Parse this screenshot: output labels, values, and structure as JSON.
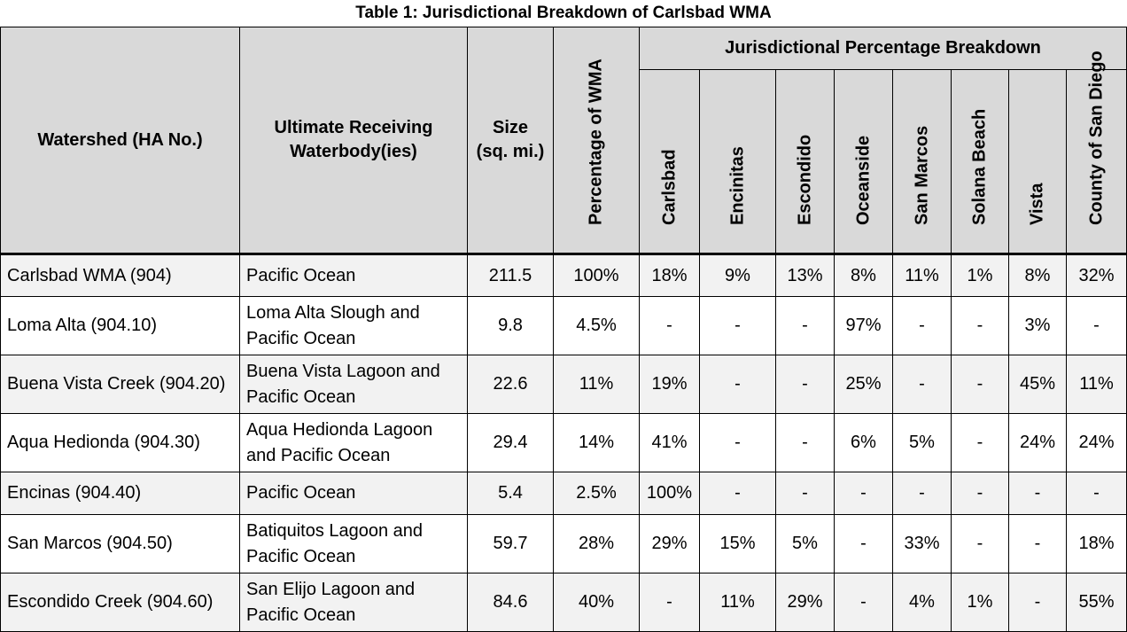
{
  "caption": "Table 1: Jurisdictional Breakdown of Carlsbad WMA",
  "headers": {
    "watershed": "Watershed (HA No.)",
    "receiving_line1": "Ultimate Receiving",
    "receiving_line2": "Waterbody(ies)",
    "size_line1": "Size",
    "size_line2": "(sq. mi.)",
    "percent_wma": "Percentage of WMA",
    "group": "Jurisdictional Percentage Breakdown",
    "jurisdictions": [
      "Carlsbad",
      "Encinitas",
      "Escondido",
      "Oceanside",
      "San Marcos",
      "Solana Beach",
      "Vista",
      "County of San Diego"
    ]
  },
  "rows": [
    {
      "watershed": "Carlsbad WMA (904)",
      "receiving": "Pacific Ocean",
      "size": "211.5",
      "percent": "100%",
      "values": [
        "18%",
        "9%",
        "13%",
        "8%",
        "11%",
        "1%",
        "8%",
        "32%"
      ]
    },
    {
      "watershed": "Loma Alta (904.10)",
      "receiving": "Loma Alta Slough and Pacific Ocean",
      "size": "9.8",
      "percent": "4.5%",
      "values": [
        "-",
        "-",
        "-",
        "97%",
        "-",
        "-",
        "3%",
        "-"
      ]
    },
    {
      "watershed": "Buena Vista Creek (904.20)",
      "receiving": "Buena Vista Lagoon and Pacific Ocean",
      "size": "22.6",
      "percent": "11%",
      "values": [
        "19%",
        "-",
        "-",
        "25%",
        "-",
        "-",
        "45%",
        "11%"
      ]
    },
    {
      "watershed": "Aqua Hedionda (904.30)",
      "receiving": "Aqua Hedionda Lagoon and Pacific Ocean",
      "size": "29.4",
      "percent": "14%",
      "values": [
        "41%",
        "-",
        "-",
        "6%",
        "5%",
        "-",
        "24%",
        "24%"
      ]
    },
    {
      "watershed": "Encinas (904.40)",
      "receiving": "Pacific Ocean",
      "size": "5.4",
      "percent": "2.5%",
      "values": [
        "100%",
        "-",
        "-",
        "-",
        "-",
        "-",
        "-",
        "-"
      ]
    },
    {
      "watershed": "San Marcos (904.50)",
      "receiving": "Batiquitos Lagoon and Pacific Ocean",
      "size": "59.7",
      "percent": "28%",
      "values": [
        "29%",
        "15%",
        "5%",
        "-",
        "33%",
        "-",
        "-",
        "18%"
      ]
    },
    {
      "watershed": "Escondido Creek (904.60)",
      "receiving": "San Elijo Lagoon and Pacific Ocean",
      "size": "84.6",
      "percent": "40%",
      "values": [
        "-",
        "11%",
        "29%",
        "-",
        "4%",
        "1%",
        "-",
        "55%"
      ]
    }
  ]
}
